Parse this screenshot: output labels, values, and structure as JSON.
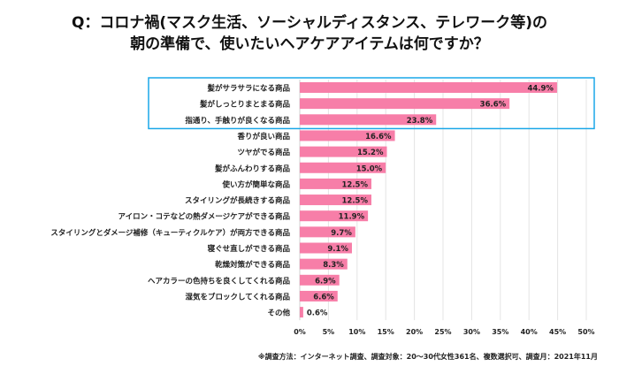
{
  "chart_data": {
    "type": "bar",
    "orientation": "horizontal",
    "title_lines": [
      "Q：コロナ禍(マスク生活、ソーシャルディスタンス、テレワーク等)の",
      "朝の準備で、使いたいヘアケアアイテムは何ですか？"
    ],
    "categories": [
      "髪がサラサラになる商品",
      "髪がしっとりまとまる商品",
      "指通り、手触りが良くなる商品",
      "香りが良い商品",
      "ツヤがでる商品",
      "髪がふんわりする商品",
      "使い方が簡単な商品",
      "スタイリングが長続きする商品",
      "アイロン・コテなどの熱ダメージケアができる商品",
      "スタイリングとダメージ補修（キューティクルケア）が両方できる商品",
      "寝ぐせ直しができる商品",
      "乾燥対策ができる商品",
      "ヘアカラーの色持ちを良くしてくれる商品",
      "湿気をブロックしてくれる商品",
      "その他"
    ],
    "values": [
      44.9,
      36.6,
      23.8,
      16.6,
      15.2,
      15.0,
      12.5,
      12.5,
      11.9,
      9.7,
      9.1,
      8.3,
      6.9,
      6.6,
      0.6
    ],
    "data_labels": [
      "44.9%",
      "36.6%",
      "23.8%",
      "16.6%",
      "15.2%",
      "15.0%",
      "12.5%",
      "12.5%",
      "11.9%",
      "9.7%",
      "9.1%",
      "8.3%",
      "6.9%",
      "6.6%",
      "0.6%"
    ],
    "xlim": [
      0,
      50
    ],
    "x_ticks": [
      "0%",
      "5%",
      "10%",
      "15%",
      "20%",
      "25%",
      "30%",
      "35%",
      "40%",
      "45%",
      "50%"
    ],
    "grid": true,
    "highlighted_top": 3,
    "colors": {
      "bar": "#f77ea8",
      "highlight_box": "#1aa7e8",
      "grid": "#e4e4e4"
    },
    "footnote": "※調査方法：インターネット調査、調査対象：20～30代女性361名、複数選択可、調査月：2021年11月"
  }
}
